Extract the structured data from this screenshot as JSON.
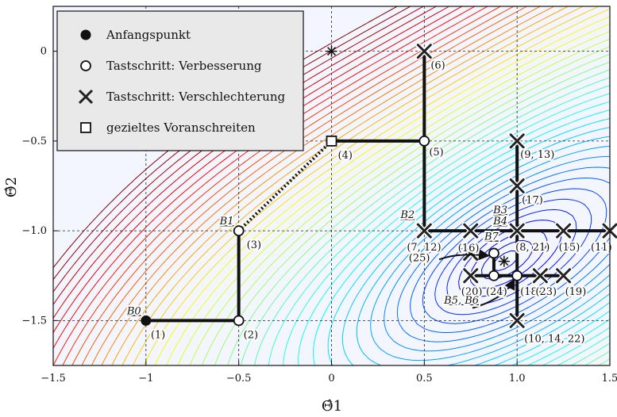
{
  "chart_data": {
    "type": "contour",
    "xlabel": "Θ̂1",
    "ylabel": "Θ̂2",
    "xlim": [
      -1.5,
      1.5
    ],
    "ylim": [
      -1.75,
      0.25
    ],
    "x_ticks": [
      "−1.5",
      "−1",
      "−0.5",
      "0",
      "0.5",
      "1.0",
      "1.5"
    ],
    "y_ticks": [
      "0",
      "−0.5",
      "−1.0",
      "−1.5"
    ],
    "grid": "dashed",
    "colormap": "jet",
    "legend": {
      "placement": "top-left",
      "entries": [
        {
          "marker": "filled-circle",
          "label": "Anfangspunkt"
        },
        {
          "marker": "open-circle",
          "label": "Tastschritt: Verbesserung"
        },
        {
          "marker": "cross",
          "label": "Tastschritt: Verschlechterung"
        },
        {
          "marker": "open-square",
          "label": "gezieltes Voranschreiten"
        }
      ]
    },
    "start_point": {
      "x": -1.0,
      "y": -1.5,
      "label": "(1)"
    },
    "improvement_points": [
      {
        "x": -0.5,
        "y": -1.5,
        "label": "(2)"
      },
      {
        "x": -0.5,
        "y": -1.0,
        "label": "(3)"
      },
      {
        "x": 0.5,
        "y": -0.5,
        "label": "(5)"
      },
      {
        "x": 0.875,
        "y": -1.125,
        "label": ""
      },
      {
        "x": 0.875,
        "y": -1.25,
        "label": "(24)"
      },
      {
        "x": 1.0,
        "y": -1.25,
        "label": "(18)"
      }
    ],
    "worsening_points": [
      {
        "x": 0.5,
        "y": 0.0,
        "label": "(6)"
      },
      {
        "x": 0.5,
        "y": -1.0,
        "label": "(7, 12)"
      },
      {
        "x": 1.0,
        "y": -0.5,
        "label": "(9, 13)"
      },
      {
        "x": 1.0,
        "y": -0.75,
        "label": "(17)"
      },
      {
        "x": 0.75,
        "y": -1.0,
        "label": "(16)"
      },
      {
        "x": 1.0,
        "y": -1.0,
        "label": "(8, 21)"
      },
      {
        "x": 1.25,
        "y": -1.0,
        "label": "(15)"
      },
      {
        "x": 1.5,
        "y": -1.0,
        "label": "(11)"
      },
      {
        "x": 0.75,
        "y": -1.25,
        "label": "(20)"
      },
      {
        "x": 1.125,
        "y": -1.25,
        "label": "(23)"
      },
      {
        "x": 1.25,
        "y": -1.25,
        "label": "(19)"
      },
      {
        "x": 1.0,
        "y": -1.5,
        "label": "(10, 14, 22)"
      },
      {
        "x": 0.75,
        "y": -1.125,
        "label": "(25)"
      }
    ],
    "progression_points": [
      {
        "x": 0.0,
        "y": -0.5,
        "label": "(4)"
      }
    ],
    "base_labels": [
      {
        "x": -1.0,
        "y": -1.5,
        "text": "B0"
      },
      {
        "x": -0.5,
        "y": -1.0,
        "text": "B1"
      },
      {
        "x": 0.5,
        "y": -1.0,
        "text": "B2"
      },
      {
        "x": 1.0,
        "y": -1.0,
        "text": "B3"
      },
      {
        "x": 1.0,
        "y": -1.0,
        "text": "B4"
      },
      {
        "x": 1.0,
        "y": -1.25,
        "text": "B5, B6"
      },
      {
        "x": 0.875,
        "y": -1.125,
        "text": "B7"
      }
    ],
    "optimum_markers": [
      {
        "x": 0.0,
        "y": 0.0
      },
      {
        "x": 0.93,
        "y": -1.17
      }
    ],
    "path_segments_solid": [
      [
        [
          -1.0,
          -1.5
        ],
        [
          -0.5,
          -1.5
        ]
      ],
      [
        [
          -0.5,
          -1.5
        ],
        [
          -0.5,
          -1.0
        ]
      ],
      [
        [
          0.0,
          -0.5
        ],
        [
          0.5,
          -0.5
        ]
      ],
      [
        [
          0.5,
          -0.5
        ],
        [
          0.5,
          0.0
        ]
      ],
      [
        [
          0.5,
          -0.5
        ],
        [
          0.5,
          -1.0
        ]
      ],
      [
        [
          0.5,
          -1.0
        ],
        [
          1.5,
          -1.0
        ]
      ],
      [
        [
          1.0,
          -0.5
        ],
        [
          1.0,
          -1.5
        ]
      ],
      [
        [
          0.75,
          -1.25
        ],
        [
          1.25,
          -1.25
        ]
      ],
      [
        [
          0.875,
          -1.125
        ],
        [
          0.875,
          -1.25
        ]
      ]
    ],
    "path_segments_dotted": [
      [
        [
          -0.5,
          -1.0
        ],
        [
          0.0,
          -0.5
        ]
      ]
    ]
  }
}
